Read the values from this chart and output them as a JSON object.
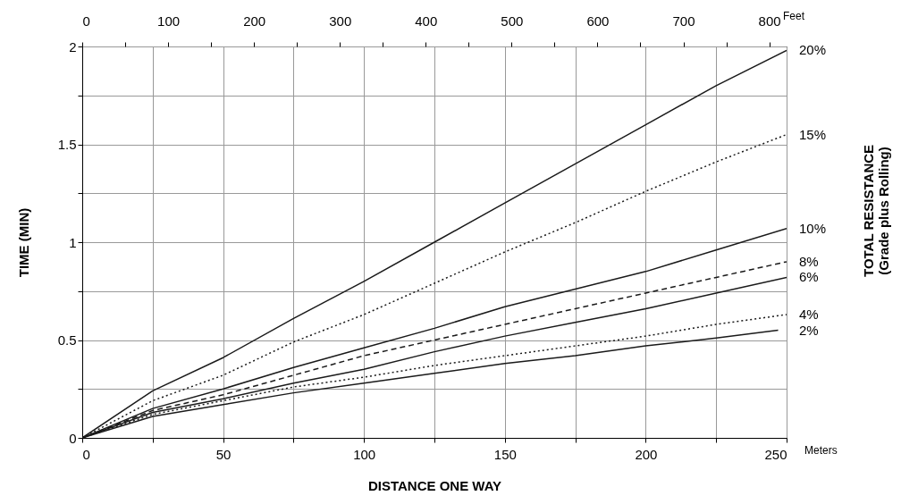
{
  "chart_data": {
    "type": "line",
    "xlabel": "DISTANCE ONE WAY",
    "ylabel": "TIME (MIN)",
    "x2label": "Feet",
    "legend_title": "TOTAL RESISTANCE\n(Grade plus Rolling)",
    "annotations": [
      "Meters"
    ],
    "x": [
      0,
      25,
      50,
      75,
      100,
      125,
      150,
      175,
      200,
      225,
      250
    ],
    "xlim": [
      0,
      250
    ],
    "xticks": [
      0,
      {
        "value": 25,
        "label": null
      },
      50,
      {
        "value": 75,
        "label": null
      },
      100,
      {
        "value": 125,
        "label": null
      },
      150,
      {
        "value": 175,
        "label": null
      },
      200,
      {
        "value": 225,
        "label": null
      },
      250
    ],
    "ylim": [
      0,
      2
    ],
    "yticks": [
      0,
      {
        "value": 0.25,
        "label": null
      },
      0.5,
      {
        "value": 0.75,
        "label": null
      },
      1,
      {
        "value": 1.25,
        "label": null
      },
      1.5,
      {
        "value": 1.75,
        "label": null
      },
      2
    ],
    "x2lim": [
      0,
      820.2
    ],
    "x2ticks": [
      0,
      {
        "value": 50,
        "label": null
      },
      100,
      {
        "value": 150,
        "label": null
      },
      200,
      {
        "value": 250,
        "label": null
      },
      300,
      {
        "value": 350,
        "label": null
      },
      400,
      {
        "value": 450,
        "label": null
      },
      500,
      {
        "value": 550,
        "label": null
      },
      600,
      {
        "value": 650,
        "label": null
      },
      700,
      {
        "value": 750,
        "label": null
      },
      800
    ],
    "grid": true,
    "series": [
      {
        "name": "20%",
        "color": "#1a1a1a",
        "line_style": "solid",
        "values": [
          0,
          0.24,
          0.41,
          0.61,
          0.8,
          1.0,
          1.2,
          1.4,
          1.6,
          1.8,
          1.98
        ]
      },
      {
        "name": "15%",
        "color": "#1a1a1a",
        "line_style": "dotted",
        "values": [
          0,
          0.19,
          0.32,
          0.49,
          0.63,
          0.79,
          0.95,
          1.1,
          1.26,
          1.41,
          1.55
        ]
      },
      {
        "name": "10%",
        "color": "#1a1a1a",
        "line_style": "solid",
        "values": [
          0,
          0.15,
          0.25,
          0.36,
          0.46,
          0.56,
          0.67,
          0.76,
          0.85,
          0.96,
          1.07
        ]
      },
      {
        "name": "8%",
        "color": "#1a1a1a",
        "line_style": "dashed",
        "values": [
          0,
          0.14,
          0.22,
          0.32,
          0.42,
          0.5,
          0.58,
          0.66,
          0.74,
          0.82,
          0.9
        ]
      },
      {
        "name": "6%",
        "color": "#1a1a1a",
        "line_style": "solid",
        "values": [
          0,
          0.13,
          0.2,
          0.28,
          0.35,
          0.44,
          0.52,
          0.59,
          0.66,
          0.74,
          0.82
        ]
      },
      {
        "name": "4%",
        "color": "#1a1a1a",
        "line_style": "dotted",
        "values": [
          0,
          0.12,
          0.19,
          0.26,
          0.31,
          0.37,
          0.42,
          0.47,
          0.52,
          0.58,
          0.63
        ]
      },
      {
        "name": "2%",
        "color": "#1a1a1a",
        "line_style": "solid",
        "x": [
          0,
          25,
          50,
          75,
          100,
          125,
          150,
          175,
          200,
          225,
          247
        ],
        "values": [
          0,
          0.11,
          0.17,
          0.23,
          0.28,
          0.33,
          0.38,
          0.42,
          0.47,
          0.51,
          0.55
        ]
      }
    ]
  }
}
